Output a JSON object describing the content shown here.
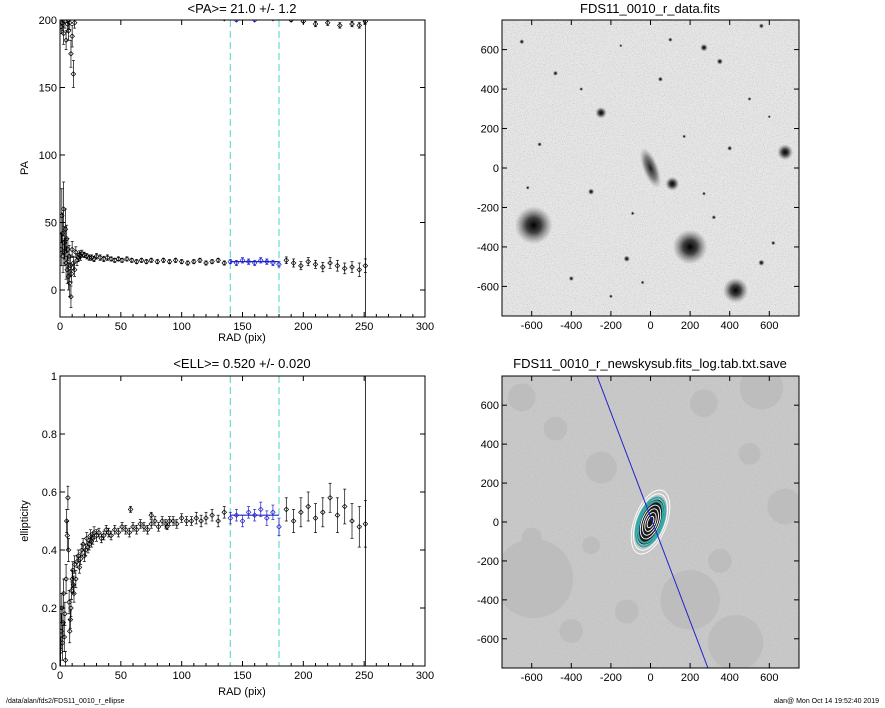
{
  "footer": {
    "path": "/data/alan/fds2/FDS11_0010_r_ellipse",
    "stamp": "alan@  Mon Oct 14 19:52:40 2019"
  },
  "colors": {
    "data": "#000000",
    "fit": "#2222cc",
    "marker": "#66ddcc",
    "boundary": "#000000"
  },
  "chart_data": [
    {
      "type": "scatter",
      "title": "<PA>=  21.0 +/-   1.2",
      "xlabel": "RAD (pix)",
      "ylabel": "PA",
      "xlim": [
        0,
        300
      ],
      "ylim": [
        -20,
        200
      ],
      "xticks": [
        0,
        50,
        100,
        150,
        200,
        250,
        300
      ],
      "yticks": [
        0,
        50,
        100,
        150,
        200
      ],
      "vlines_dashed": [
        140,
        180
      ],
      "vline_solid": 251,
      "fit": {
        "x": [
          140,
          180
        ],
        "y": 21.0
      },
      "points": [
        [
          1,
          30,
          12
        ],
        [
          1.5,
          55,
          20
        ],
        [
          2,
          42,
          15
        ],
        [
          2.5,
          25,
          12
        ],
        [
          3,
          60,
          20
        ],
        [
          3.5,
          35,
          12
        ],
        [
          4,
          28,
          10
        ],
        [
          4.5,
          45,
          15
        ],
        [
          5,
          20,
          12
        ],
        [
          5.5,
          38,
          10
        ],
        [
          6,
          15,
          10
        ],
        [
          6.5,
          30,
          8
        ],
        [
          7,
          10,
          10
        ],
        [
          7.5,
          25,
          8
        ],
        [
          8,
          5,
          10
        ],
        [
          8.5,
          18,
          8
        ],
        [
          9,
          -5,
          8
        ],
        [
          9.5,
          12,
          6
        ],
        [
          10,
          30,
          6
        ],
        [
          11,
          20,
          5
        ],
        [
          12,
          15,
          5
        ],
        [
          13,
          28,
          4
        ],
        [
          14,
          22,
          4
        ],
        [
          15,
          24,
          3
        ],
        [
          16,
          26,
          3
        ],
        [
          17,
          25,
          3
        ],
        [
          18,
          27,
          2.5
        ],
        [
          20,
          26,
          2
        ],
        [
          22,
          25,
          2
        ],
        [
          24,
          24,
          2
        ],
        [
          26,
          24,
          2
        ],
        [
          28,
          23,
          2
        ],
        [
          30,
          25,
          2
        ],
        [
          33,
          24,
          2
        ],
        [
          36,
          23,
          2
        ],
        [
          39,
          24,
          2
        ],
        [
          42,
          23,
          1.5
        ],
        [
          45,
          22,
          1.5
        ],
        [
          48,
          23,
          1.5
        ],
        [
          51,
          22,
          1.5
        ],
        [
          55,
          23,
          1.5
        ],
        [
          59,
          22,
          1.5
        ],
        [
          63,
          21,
          1.5
        ],
        [
          67,
          22,
          1.5
        ],
        [
          71,
          21,
          1.5
        ],
        [
          75,
          22,
          1.5
        ],
        [
          80,
          21,
          1.5
        ],
        [
          85,
          22,
          1.5
        ],
        [
          90,
          21,
          1.5
        ],
        [
          95,
          22,
          1.5
        ],
        [
          100,
          21,
          1.5
        ],
        [
          105,
          20,
          1.5
        ],
        [
          110,
          21,
          1.5
        ],
        [
          115,
          22,
          1.5
        ],
        [
          120,
          20,
          1.5
        ],
        [
          125,
          21,
          1.5
        ],
        [
          130,
          22,
          1.5
        ],
        [
          135,
          20,
          1.5
        ],
        [
          140,
          21,
          1.5
        ],
        [
          145,
          20,
          2
        ],
        [
          150,
          22,
          2
        ],
        [
          155,
          21,
          2
        ],
        [
          160,
          20,
          2
        ],
        [
          165,
          22,
          2
        ],
        [
          170,
          21,
          2
        ],
        [
          175,
          20,
          2
        ],
        [
          180,
          19,
          2
        ],
        [
          186,
          22,
          2.5
        ],
        [
          192,
          20,
          3
        ],
        [
          198,
          18,
          3
        ],
        [
          204,
          21,
          3
        ],
        [
          210,
          19,
          3
        ],
        [
          216,
          17,
          3.5
        ],
        [
          222,
          20,
          4
        ],
        [
          228,
          18,
          4
        ],
        [
          234,
          16,
          4
        ],
        [
          240,
          17,
          4
        ],
        [
          246,
          15,
          5
        ],
        [
          251,
          18,
          5
        ],
        [
          1,
          195,
          5
        ],
        [
          2,
          198,
          6
        ],
        [
          3,
          190,
          8
        ],
        [
          4,
          199,
          5
        ],
        [
          5,
          185,
          7
        ],
        [
          6,
          197,
          6
        ],
        [
          7,
          192,
          7
        ],
        [
          8,
          198,
          5
        ],
        [
          9,
          175,
          10
        ],
        [
          10,
          188,
          8
        ],
        [
          11,
          160,
          10
        ],
        [
          12,
          198,
          4
        ],
        [
          135,
          201,
          1
        ],
        [
          145,
          200,
          1
        ],
        [
          160,
          200,
          1
        ],
        [
          175,
          201,
          1
        ],
        [
          190,
          200,
          1
        ],
        [
          200,
          199,
          1
        ],
        [
          210,
          197,
          2
        ],
        [
          220,
          198,
          2
        ],
        [
          230,
          196,
          2
        ],
        [
          240,
          197,
          2
        ],
        [
          246,
          196,
          2
        ],
        [
          251,
          199,
          2
        ]
      ]
    },
    {
      "type": "scatter",
      "title": "<ELL>= 0.520 +/-  0.020",
      "xlabel": "RAD (pix)",
      "ylabel": "ellipticity",
      "xlim": [
        0,
        300
      ],
      "ylim": [
        0,
        1
      ],
      "xticks": [
        0,
        50,
        100,
        150,
        200,
        250,
        300
      ],
      "yticks": [
        0,
        0.2,
        0.4,
        0.6,
        0.8,
        1.0
      ],
      "vlines_dashed": [
        140,
        180
      ],
      "vline_solid": 251,
      "fit": {
        "x": [
          140,
          180
        ],
        "y": 0.52
      },
      "points": [
        [
          0.5,
          0.05,
          0.05
        ],
        [
          1,
          0.12,
          0.06
        ],
        [
          1.5,
          0.2,
          0.05
        ],
        [
          2,
          0.08,
          0.06
        ],
        [
          2.5,
          0.15,
          0.05
        ],
        [
          3,
          0.25,
          0.05
        ],
        [
          3.5,
          0.1,
          0.05
        ],
        [
          4,
          0.18,
          0.04
        ],
        [
          4.5,
          0.02,
          0.03
        ],
        [
          5,
          0.3,
          0.05
        ],
        [
          5.5,
          0.5,
          0.04
        ],
        [
          6,
          0.45,
          0.05
        ],
        [
          6.5,
          0.58,
          0.04
        ],
        [
          7,
          0.4,
          0.04
        ],
        [
          7.5,
          0.22,
          0.04
        ],
        [
          8,
          0.12,
          0.04
        ],
        [
          8.5,
          0.16,
          0.03
        ],
        [
          9,
          0.2,
          0.03
        ],
        [
          9.5,
          0.26,
          0.03
        ],
        [
          10,
          0.3,
          0.03
        ],
        [
          10.5,
          0.33,
          0.03
        ],
        [
          11,
          0.28,
          0.03
        ],
        [
          11.5,
          0.25,
          0.03
        ],
        [
          12,
          0.35,
          0.03
        ],
        [
          13,
          0.3,
          0.03
        ],
        [
          14,
          0.36,
          0.02
        ],
        [
          15,
          0.38,
          0.02
        ],
        [
          16,
          0.34,
          0.02
        ],
        [
          17,
          0.37,
          0.02
        ],
        [
          18,
          0.4,
          0.02
        ],
        [
          19,
          0.42,
          0.02
        ],
        [
          20,
          0.38,
          0.02
        ],
        [
          21,
          0.4,
          0.02
        ],
        [
          22,
          0.44,
          0.02
        ],
        [
          23,
          0.41,
          0.02
        ],
        [
          24,
          0.42,
          0.02
        ],
        [
          25,
          0.45,
          0.02
        ],
        [
          26,
          0.43,
          0.02
        ],
        [
          27,
          0.44,
          0.02
        ],
        [
          28,
          0.46,
          0.02
        ],
        [
          30,
          0.45,
          0.02
        ],
        [
          32,
          0.46,
          0.015
        ],
        [
          34,
          0.44,
          0.015
        ],
        [
          36,
          0.45,
          0.015
        ],
        [
          38,
          0.47,
          0.015
        ],
        [
          40,
          0.46,
          0.015
        ],
        [
          42,
          0.45,
          0.015
        ],
        [
          45,
          0.47,
          0.015
        ],
        [
          48,
          0.46,
          0.015
        ],
        [
          51,
          0.48,
          0.015
        ],
        [
          54,
          0.47,
          0.015
        ],
        [
          57,
          0.46,
          0.015
        ],
        [
          60,
          0.48,
          0.015
        ],
        [
          63,
          0.47,
          0.015
        ],
        [
          66,
          0.49,
          0.015
        ],
        [
          69,
          0.48,
          0.015
        ],
        [
          72,
          0.47,
          0.015
        ],
        [
          75,
          0.49,
          0.015
        ],
        [
          78,
          0.5,
          0.015
        ],
        [
          81,
          0.48,
          0.015
        ],
        [
          84,
          0.5,
          0.015
        ],
        [
          87,
          0.49,
          0.015
        ],
        [
          90,
          0.5,
          0.015
        ],
        [
          93,
          0.5,
          0.015
        ],
        [
          96,
          0.49,
          0.015
        ],
        [
          100,
          0.51,
          0.015
        ],
        [
          104,
          0.5,
          0.015
        ],
        [
          108,
          0.5,
          0.015
        ],
        [
          112,
          0.51,
          0.02
        ],
        [
          116,
          0.5,
          0.02
        ],
        [
          120,
          0.51,
          0.02
        ],
        [
          125,
          0.52,
          0.02
        ],
        [
          130,
          0.5,
          0.02
        ],
        [
          135,
          0.53,
          0.02
        ],
        [
          140,
          0.51,
          0.02
        ],
        [
          145,
          0.52,
          0.02
        ],
        [
          150,
          0.5,
          0.02
        ],
        [
          155,
          0.53,
          0.02
        ],
        [
          160,
          0.52,
          0.02
        ],
        [
          165,
          0.54,
          0.025
        ],
        [
          170,
          0.51,
          0.025
        ],
        [
          175,
          0.53,
          0.025
        ],
        [
          180,
          0.48,
          0.03
        ],
        [
          186,
          0.54,
          0.04
        ],
        [
          192,
          0.5,
          0.04
        ],
        [
          198,
          0.53,
          0.05
        ],
        [
          204,
          0.55,
          0.05
        ],
        [
          210,
          0.51,
          0.05
        ],
        [
          216,
          0.53,
          0.05
        ],
        [
          222,
          0.58,
          0.05
        ],
        [
          228,
          0.52,
          0.06
        ],
        [
          234,
          0.55,
          0.06
        ],
        [
          240,
          0.5,
          0.06
        ],
        [
          246,
          0.48,
          0.07
        ],
        [
          251,
          0.49,
          0.08
        ],
        [
          58,
          0.54,
          0.01
        ],
        [
          75,
          0.52,
          0.01
        ],
        [
          88,
          0.48,
          0.01
        ]
      ]
    },
    {
      "type": "image",
      "title": "FDS11_0010_r_data.fits",
      "xlim": [
        -750,
        750
      ],
      "ylim": [
        -750,
        750
      ],
      "xticks": [
        -600,
        -400,
        -200,
        0,
        200,
        400,
        600
      ],
      "yticks": [
        -600,
        -400,
        -200,
        0,
        200,
        400,
        600
      ],
      "galaxy": {
        "x": 0,
        "y": 0,
        "a": 110,
        "b": 40,
        "pa": 21
      },
      "stars": [
        [
          -590,
          -290,
          60
        ],
        [
          200,
          -400,
          55
        ],
        [
          430,
          -620,
          40
        ],
        [
          680,
          80,
          25
        ],
        [
          -250,
          280,
          18
        ],
        [
          110,
          -80,
          22
        ],
        [
          -300,
          -120,
          10
        ],
        [
          270,
          610,
          12
        ],
        [
          350,
          540,
          10
        ],
        [
          -480,
          480,
          8
        ],
        [
          -120,
          -460,
          10
        ],
        [
          560,
          -480,
          10
        ],
        [
          -400,
          -560,
          8
        ],
        [
          50,
          450,
          8
        ],
        [
          -560,
          120,
          7
        ],
        [
          400,
          100,
          8
        ],
        [
          320,
          -250,
          7
        ],
        [
          -90,
          -230,
          6
        ],
        [
          170,
          160,
          6
        ],
        [
          620,
          -380,
          7
        ],
        [
          -650,
          640,
          8
        ],
        [
          -200,
          -650,
          6
        ],
        [
          500,
          350,
          6
        ],
        [
          -350,
          400,
          6
        ],
        [
          100,
          650,
          7
        ],
        [
          -620,
          -100,
          6
        ],
        [
          270,
          -130,
          6
        ],
        [
          600,
          260,
          5
        ],
        [
          -150,
          620,
          5
        ],
        [
          -40,
          -580,
          6
        ],
        [
          560,
          720,
          8
        ]
      ]
    },
    {
      "type": "image",
      "title": "FDS11_0010_r_newskysub.fits_log.tab.txt.save",
      "xlim": [
        -750,
        750
      ],
      "ylim": [
        -750,
        750
      ],
      "xticks": [
        -600,
        -400,
        -200,
        0,
        200,
        400,
        600
      ],
      "yticks": [
        -600,
        -400,
        -200,
        0,
        200,
        400,
        600
      ],
      "masks": [
        [
          -590,
          -290,
          200
        ],
        [
          200,
          -400,
          150
        ],
        [
          430,
          -620,
          140
        ],
        [
          680,
          80,
          90
        ],
        [
          -250,
          280,
          80
        ],
        [
          560,
          690,
          110
        ],
        [
          -480,
          480,
          60
        ],
        [
          270,
          610,
          70
        ],
        [
          -120,
          -460,
          60
        ],
        [
          -650,
          640,
          70
        ],
        [
          -400,
          -560,
          60
        ],
        [
          350,
          -200,
          60
        ],
        [
          -600,
          -80,
          50
        ],
        [
          500,
          350,
          55
        ],
        [
          -300,
          -120,
          45
        ]
      ],
      "axis_line": [
        [
          -270,
          750
        ],
        [
          290,
          -750
        ]
      ],
      "ellipses": {
        "pa": 21,
        "ell": 0.52,
        "radii": [
          30,
          50,
          70,
          90,
          110,
          130,
          150,
          170
        ]
      }
    }
  ]
}
